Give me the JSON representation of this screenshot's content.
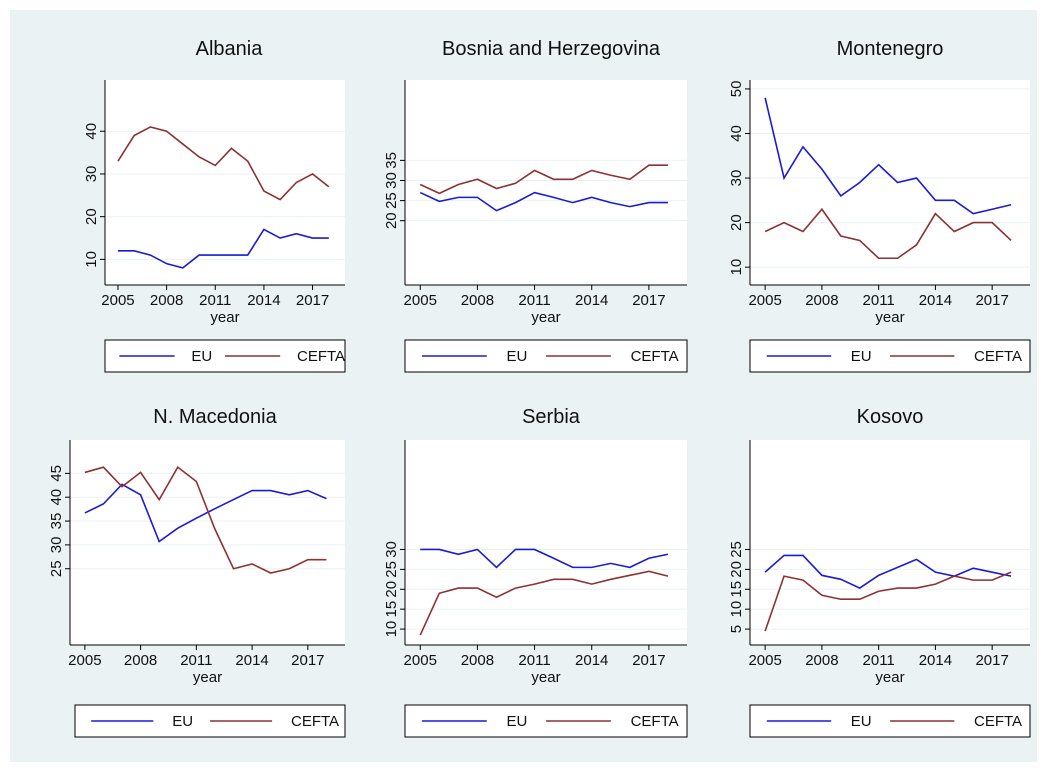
{
  "chart_data": [
    {
      "type": "line",
      "title": "Albania",
      "xlabel": "year",
      "x": [
        2005,
        2006,
        2007,
        2008,
        2009,
        2010,
        2011,
        2012,
        2013,
        2014,
        2015,
        2016,
        2017,
        2018
      ],
      "series": [
        {
          "name": "EU",
          "color": "#1a1ad8",
          "values": [
            12,
            12,
            11,
            9,
            8,
            11,
            11,
            11,
            11,
            17,
            15,
            16,
            15,
            15
          ]
        },
        {
          "name": "CEFTA",
          "color": "#8c3232",
          "values": [
            33,
            39,
            41,
            40,
            37,
            34,
            32,
            36,
            33,
            26,
            24,
            28,
            30,
            27
          ]
        }
      ],
      "xlim": [
        2004.2,
        2019
      ],
      "xticks": [
        2005,
        2008,
        2011,
        2014,
        2017
      ],
      "ylim": [
        4,
        52
      ],
      "yticks": [
        10,
        20,
        30,
        40
      ],
      "grid": true
    },
    {
      "type": "line",
      "title": "Bosnia and Herzegovina",
      "xlabel": "year",
      "x": [
        2005,
        2006,
        2007,
        2008,
        2009,
        2010,
        2011,
        2012,
        2013,
        2014,
        2015,
        2016,
        2017,
        2018
      ],
      "series": [
        {
          "name": "EU",
          "color": "#1a1ad8",
          "values": [
            27,
            24.8,
            25.8,
            25.8,
            22.5,
            24.5,
            27,
            25.8,
            24.5,
            25.8,
            24.5,
            23.5,
            24.5,
            24.5
          ]
        },
        {
          "name": "CEFTA",
          "color": "#8c3232",
          "values": [
            29,
            26.8,
            29,
            30.3,
            28,
            29.3,
            32.5,
            30.3,
            30.3,
            32.5,
            31.3,
            30.3,
            33.8,
            33.8
          ]
        }
      ],
      "xlim": [
        2004.2,
        2019
      ],
      "xticks": [
        2005,
        2008,
        2011,
        2014,
        2017
      ],
      "ylim": [
        4,
        55
      ],
      "yticks": [
        20,
        25,
        30,
        35
      ],
      "grid": true
    },
    {
      "type": "line",
      "title": "Montenegro",
      "xlabel": "year",
      "x": [
        2005,
        2006,
        2007,
        2008,
        2009,
        2010,
        2011,
        2012,
        2013,
        2014,
        2015,
        2016,
        2017,
        2018
      ],
      "series": [
        {
          "name": "EU",
          "color": "#1a1ad8",
          "values": [
            48,
            30,
            37,
            32,
            26,
            29,
            33,
            29,
            30,
            25,
            25,
            22,
            23,
            24
          ]
        },
        {
          "name": "CEFTA",
          "color": "#8c3232",
          "values": [
            18,
            20,
            18,
            23,
            17,
            16,
            12,
            12,
            15,
            22,
            18,
            20,
            20,
            16
          ]
        }
      ],
      "xlim": [
        2004.2,
        2019
      ],
      "xticks": [
        2005,
        2008,
        2011,
        2014,
        2017
      ],
      "ylim": [
        6,
        52
      ],
      "yticks": [
        10,
        20,
        30,
        40,
        50
      ],
      "grid": true
    },
    {
      "type": "line",
      "title": "N. Macedonia",
      "xlabel": "year",
      "x": [
        2005,
        2006,
        2007,
        2008,
        2009,
        2010,
        2011,
        2012,
        2013,
        2014,
        2015,
        2016,
        2017,
        2018
      ],
      "series": [
        {
          "name": "EU",
          "color": "#1a1ad8",
          "values": [
            36.7,
            38.6,
            42.7,
            40.5,
            30.7,
            33.5,
            35.6,
            37.6,
            39.5,
            41.4,
            41.4,
            40.5,
            41.4,
            39.7
          ]
        },
        {
          "name": "CEFTA",
          "color": "#8c3232",
          "values": [
            45.2,
            46.3,
            42.2,
            45.2,
            39.5,
            46.3,
            43.3,
            33.3,
            25,
            26,
            24.1,
            25,
            26.9,
            26.9
          ]
        }
      ],
      "xlim": [
        2004.2,
        2019
      ],
      "xticks": [
        2005,
        2008,
        2011,
        2014,
        2017
      ],
      "ylim": [
        9,
        52
      ],
      "yticks": [
        25,
        30,
        35,
        40,
        45
      ],
      "grid": true
    },
    {
      "type": "line",
      "title": "Serbia",
      "xlabel": "year",
      "x": [
        2005,
        2006,
        2007,
        2008,
        2009,
        2010,
        2011,
        2012,
        2013,
        2014,
        2015,
        2016,
        2017,
        2018
      ],
      "series": [
        {
          "name": "EU",
          "color": "#1a1ad8",
          "values": [
            30,
            30,
            28.8,
            30,
            25.5,
            30,
            30,
            27.8,
            25.5,
            25.5,
            26.5,
            25.5,
            27.8,
            28.8
          ]
        },
        {
          "name": "CEFTA",
          "color": "#8c3232",
          "values": [
            8.5,
            19,
            20.3,
            20.3,
            18,
            20.3,
            21.3,
            22.5,
            22.5,
            21.3,
            22.5,
            23.5,
            24.5,
            23.3
          ]
        }
      ],
      "xlim": [
        2004.2,
        2019
      ],
      "xticks": [
        2005,
        2008,
        2011,
        2014,
        2017
      ],
      "ylim": [
        6,
        57.5
      ],
      "yticks": [
        10,
        15,
        20,
        25,
        30
      ],
      "grid": true
    },
    {
      "type": "line",
      "title": "Kosovo",
      "xlabel": "year",
      "x": [
        2005,
        2006,
        2007,
        2008,
        2009,
        2010,
        2011,
        2012,
        2013,
        2014,
        2015,
        2016,
        2017,
        2018
      ],
      "series": [
        {
          "name": "EU",
          "color": "#1a1ad8",
          "values": [
            19.3,
            23.5,
            23.5,
            18.5,
            17.5,
            15.3,
            18.5,
            20.5,
            22.5,
            19.3,
            18.3,
            20.3,
            19.3,
            18.3
          ]
        },
        {
          "name": "CEFTA",
          "color": "#8c3232",
          "values": [
            4.5,
            18.3,
            17.3,
            13.5,
            12.5,
            12.5,
            14.5,
            15.3,
            15.3,
            16.3,
            18.3,
            17.3,
            17.3,
            19.3
          ]
        }
      ],
      "xlim": [
        2004.2,
        2019
      ],
      "xticks": [
        2005,
        2008,
        2011,
        2014,
        2017
      ],
      "ylim": [
        1,
        52.5
      ],
      "yticks": [
        5,
        10,
        15,
        20,
        25
      ],
      "grid": true
    }
  ]
}
